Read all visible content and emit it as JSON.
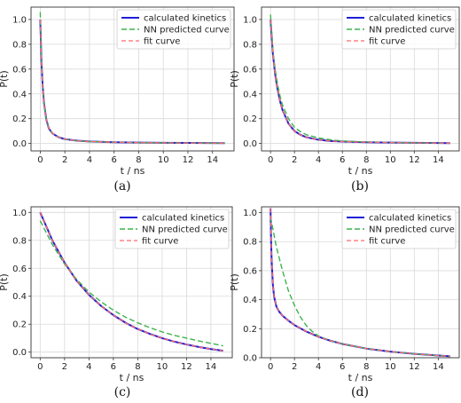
{
  "colors": {
    "calculated": "#1f1fd6",
    "nn": "#3cb44b",
    "fit": "#ff6b6b",
    "grid": "#d9d9d9",
    "frame": "#333333"
  },
  "chart_data": [
    {
      "type": "line",
      "caption": "(a)",
      "xlabel": "t / ns",
      "ylabel": "P(t)",
      "xlim": [
        -0.75,
        15.75
      ],
      "ylim": [
        -0.06,
        1.1
      ],
      "xticks": [
        0,
        2,
        4,
        6,
        8,
        10,
        12,
        14
      ],
      "yticks": [
        0.0,
        0.2,
        0.4,
        0.6,
        0.8,
        1.0
      ],
      "grid": true,
      "legend": "top-right",
      "series": [
        {
          "name": "calculated kinetics",
          "style": "solid",
          "x": [
            0,
            0.1,
            0.2,
            0.3,
            0.5,
            0.7,
            1.0,
            1.5,
            2.0,
            3.0,
            4.0,
            6.0,
            8.0,
            10.0,
            12.0,
            15.0
          ],
          "y": [
            1.0,
            0.65,
            0.46,
            0.33,
            0.19,
            0.12,
            0.08,
            0.05,
            0.035,
            0.022,
            0.016,
            0.01,
            0.007,
            0.005,
            0.004,
            0.003
          ]
        },
        {
          "name": "NN predicted curve",
          "style": "dashed",
          "x": [
            0,
            0.1,
            0.2,
            0.3,
            0.5,
            0.7,
            1.0,
            1.5,
            2.0,
            3.0,
            4.0,
            6.0,
            8.0,
            10.0,
            12.0,
            15.0
          ],
          "y": [
            1.06,
            0.66,
            0.46,
            0.33,
            0.19,
            0.12,
            0.08,
            0.05,
            0.034,
            0.021,
            0.015,
            0.01,
            0.007,
            0.005,
            0.004,
            0.003
          ]
        },
        {
          "name": "fit curve",
          "style": "dashed",
          "x": [
            0,
            0.1,
            0.2,
            0.3,
            0.5,
            0.7,
            1.0,
            1.5,
            2.0,
            3.0,
            4.0,
            6.0,
            8.0,
            10.0,
            12.0,
            15.0
          ],
          "y": [
            1.0,
            0.65,
            0.46,
            0.33,
            0.19,
            0.12,
            0.08,
            0.05,
            0.035,
            0.022,
            0.016,
            0.01,
            0.007,
            0.005,
            0.004,
            0.003
          ]
        }
      ]
    },
    {
      "type": "line",
      "caption": "(b)",
      "xlabel": "t / ns",
      "ylabel": "P(t)",
      "xlim": [
        -0.75,
        15.75
      ],
      "ylim": [
        -0.06,
        1.1
      ],
      "xticks": [
        0,
        2,
        4,
        6,
        8,
        10,
        12,
        14
      ],
      "yticks": [
        0.0,
        0.2,
        0.4,
        0.6,
        0.8,
        1.0
      ],
      "grid": true,
      "legend": "top-right",
      "series": [
        {
          "name": "calculated kinetics",
          "style": "solid",
          "x": [
            0,
            0.2,
            0.4,
            0.6,
            0.8,
            1.0,
            1.5,
            2.0,
            2.5,
            3.0,
            4.0,
            5.0,
            6.0,
            8.0,
            10.0,
            12.0,
            15.0
          ],
          "y": [
            1.0,
            0.72,
            0.55,
            0.43,
            0.34,
            0.27,
            0.16,
            0.1,
            0.07,
            0.05,
            0.03,
            0.02,
            0.015,
            0.01,
            0.007,
            0.005,
            0.003
          ]
        },
        {
          "name": "NN predicted curve",
          "style": "dashed",
          "x": [
            0,
            0.2,
            0.4,
            0.6,
            0.8,
            1.0,
            1.5,
            2.0,
            2.5,
            3.0,
            4.0,
            5.0,
            6.0,
            8.0,
            10.0,
            12.0,
            15.0
          ],
          "y": [
            1.04,
            0.75,
            0.59,
            0.47,
            0.38,
            0.31,
            0.2,
            0.13,
            0.095,
            0.07,
            0.045,
            0.03,
            0.02,
            0.012,
            0.008,
            0.005,
            0.003
          ]
        },
        {
          "name": "fit curve",
          "style": "dashed",
          "x": [
            0,
            0.2,
            0.4,
            0.6,
            0.8,
            1.0,
            1.5,
            2.0,
            2.5,
            3.0,
            4.0,
            5.0,
            6.0,
            8.0,
            10.0,
            12.0,
            15.0
          ],
          "y": [
            1.0,
            0.72,
            0.55,
            0.43,
            0.34,
            0.27,
            0.16,
            0.1,
            0.07,
            0.05,
            0.03,
            0.02,
            0.015,
            0.01,
            0.007,
            0.005,
            0.003
          ]
        }
      ]
    },
    {
      "type": "line",
      "caption": "(c)",
      "xlabel": "t / ns",
      "ylabel": "P(t)",
      "xlim": [
        -0.75,
        15.75
      ],
      "ylim": [
        -0.04,
        1.04
      ],
      "xticks": [
        0,
        2,
        4,
        6,
        8,
        10,
        12,
        14
      ],
      "yticks": [
        0.0,
        0.2,
        0.4,
        0.6,
        0.8,
        1.0
      ],
      "grid": true,
      "legend": "top-right",
      "series": [
        {
          "name": "calculated kinetics",
          "style": "solid",
          "x": [
            0,
            1,
            2,
            3,
            4,
            5,
            6,
            7,
            8,
            9,
            10,
            11,
            12,
            13,
            14,
            15
          ],
          "y": [
            1.0,
            0.8,
            0.64,
            0.51,
            0.41,
            0.33,
            0.265,
            0.21,
            0.165,
            0.13,
            0.1,
            0.075,
            0.055,
            0.037,
            0.022,
            0.01
          ]
        },
        {
          "name": "NN predicted curve",
          "style": "dashed",
          "x": [
            0,
            1,
            2,
            3,
            4,
            5,
            6,
            7,
            8,
            9,
            10,
            11,
            12,
            13,
            14,
            15
          ],
          "y": [
            0.94,
            0.77,
            0.63,
            0.52,
            0.43,
            0.36,
            0.3,
            0.25,
            0.21,
            0.175,
            0.145,
            0.12,
            0.1,
            0.08,
            0.063,
            0.045
          ]
        },
        {
          "name": "fit curve",
          "style": "dashed",
          "x": [
            0,
            1,
            2,
            3,
            4,
            5,
            6,
            7,
            8,
            9,
            10,
            11,
            12,
            13,
            14,
            15
          ],
          "y": [
            1.0,
            0.8,
            0.64,
            0.51,
            0.41,
            0.33,
            0.265,
            0.21,
            0.165,
            0.13,
            0.1,
            0.075,
            0.055,
            0.037,
            0.022,
            0.01
          ]
        }
      ]
    },
    {
      "type": "line",
      "caption": "(d)",
      "xlabel": "t / ns",
      "ylabel": "P(t)",
      "xlim": [
        -0.75,
        15.75
      ],
      "ylim": [
        0.0,
        1.04
      ],
      "xticks": [
        0,
        2,
        4,
        6,
        8,
        10,
        12,
        14
      ],
      "yticks": [
        0.0,
        0.2,
        0.4,
        0.6,
        0.8,
        1.0
      ],
      "grid": true,
      "legend": "top-right",
      "series": [
        {
          "name": "calculated kinetics",
          "style": "solid",
          "x": [
            0,
            0.05,
            0.1,
            0.2,
            0.3,
            0.5,
            0.7,
            1.0,
            1.5,
            2.0,
            3.0,
            4.0,
            5.0,
            6.0,
            8.0,
            10.0,
            12.0,
            14.0,
            15.0
          ],
          "y": [
            1.03,
            0.8,
            0.66,
            0.5,
            0.42,
            0.35,
            0.32,
            0.29,
            0.255,
            0.225,
            0.18,
            0.145,
            0.117,
            0.095,
            0.063,
            0.042,
            0.027,
            0.015,
            0.01
          ]
        },
        {
          "name": "NN predicted curve",
          "style": "dashed",
          "x": [
            0,
            0.5,
            1.0,
            1.5,
            2.0,
            2.5,
            3.0,
            3.5,
            4.0,
            5.0,
            6.0,
            8.0,
            10.0,
            12.0,
            14.0,
            15.0
          ],
          "y": [
            0.97,
            0.76,
            0.6,
            0.46,
            0.36,
            0.28,
            0.22,
            0.18,
            0.15,
            0.117,
            0.095,
            0.063,
            0.042,
            0.027,
            0.015,
            0.01
          ]
        },
        {
          "name": "fit curve",
          "style": "dashed",
          "x": [
            0,
            0.05,
            0.1,
            0.2,
            0.3,
            0.5,
            0.7,
            1.0,
            1.5,
            2.0,
            3.0,
            4.0,
            5.0,
            6.0,
            8.0,
            10.0,
            12.0,
            14.0,
            15.0
          ],
          "y": [
            1.03,
            0.8,
            0.66,
            0.5,
            0.42,
            0.35,
            0.32,
            0.29,
            0.255,
            0.225,
            0.18,
            0.145,
            0.117,
            0.095,
            0.063,
            0.042,
            0.027,
            0.015,
            0.01
          ]
        }
      ]
    }
  ]
}
